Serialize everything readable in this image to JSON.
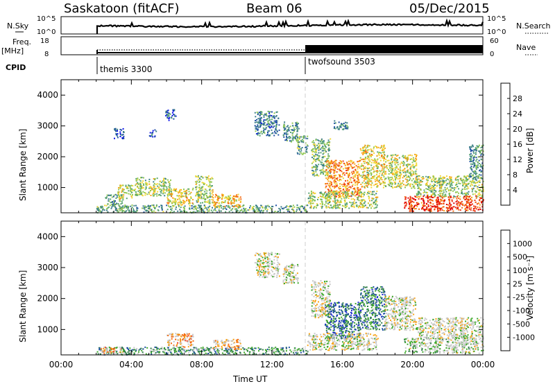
{
  "header": {
    "station": "Saskatoon (fitACF)",
    "beam": "Beam 06",
    "date": "05/Dec/2015"
  },
  "top_panels": {
    "nsky_label": "N.Sky",
    "nsky_ticks": [
      "10^5",
      "10^0"
    ],
    "nsearch_label": "N.Search",
    "nsearch_ticks": [
      "10^5",
      "10^0"
    ],
    "freq_label_1": "Freq.",
    "freq_label_2": "[MHz]",
    "freq_ticks": [
      "18",
      "8"
    ],
    "nave_label": "Nave",
    "nave_ticks": [
      "60",
      "0"
    ],
    "cpid_label": "CPID",
    "cpid_entries": [
      {
        "name": "themis 3300",
        "start_hour": 2.0
      },
      {
        "name": "twofsound 3503",
        "start_hour": 14.0
      }
    ]
  },
  "chart_data": [
    {
      "type": "heatmap",
      "panel": "power",
      "ylabel": "Slant Range [km]",
      "xlim": [
        0,
        24
      ],
      "ylim": [
        180,
        4500
      ],
      "y_ticks": [
        "1000",
        "2000",
        "3000",
        "4000"
      ],
      "colorbar_label": "Power [dB]",
      "colorbar_ticks": [
        "28",
        "24",
        "20",
        "16",
        "12",
        "8",
        "4"
      ],
      "colorbar_colors": [
        "#e00000",
        "#ee3a18",
        "#f46a10",
        "#f8a418",
        "#f0d838",
        "#90c850",
        "#58a470",
        "#3a7c88",
        "#1f4fa4",
        "#0810e8"
      ],
      "regions": [
        {
          "t0": 2.0,
          "t1": 14.0,
          "r0": 200,
          "r1": 450,
          "level": 0.35
        },
        {
          "t0": 2.5,
          "t1": 3.5,
          "r0": 450,
          "r1": 800,
          "level": 0.3
        },
        {
          "t0": 3.2,
          "t1": 4.2,
          "r0": 650,
          "r1": 1100,
          "level": 0.5
        },
        {
          "t0": 4.2,
          "t1": 6.2,
          "r0": 750,
          "r1": 1350,
          "level": 0.45
        },
        {
          "t0": 6.0,
          "t1": 7.5,
          "r0": 450,
          "r1": 1000,
          "level": 0.55
        },
        {
          "t0": 7.6,
          "t1": 8.6,
          "r0": 500,
          "r1": 1400,
          "level": 0.45
        },
        {
          "t0": 8.6,
          "t1": 10.2,
          "r0": 380,
          "r1": 800,
          "level": 0.6
        },
        {
          "t0": 3.0,
          "t1": 3.6,
          "r0": 2600,
          "r1": 2950,
          "level": 0.15
        },
        {
          "t0": 5.9,
          "t1": 6.5,
          "r0": 3200,
          "r1": 3550,
          "level": 0.15
        },
        {
          "t0": 5.0,
          "t1": 5.4,
          "r0": 2650,
          "r1": 2900,
          "level": 0.15
        },
        {
          "t0": 11.0,
          "t1": 12.4,
          "r0": 2700,
          "r1": 3500,
          "level": 0.25
        },
        {
          "t0": 12.6,
          "t1": 13.5,
          "r0": 2500,
          "r1": 3150,
          "level": 0.3
        },
        {
          "t0": 13.4,
          "t1": 14.0,
          "r0": 2100,
          "r1": 2700,
          "level": 0.35
        },
        {
          "t0": 14.2,
          "t1": 15.3,
          "r0": 1400,
          "r1": 2600,
          "level": 0.4
        },
        {
          "t0": 15.0,
          "t1": 17.0,
          "r0": 700,
          "r1": 1900,
          "level": 0.7
        },
        {
          "t0": 17.0,
          "t1": 18.4,
          "r0": 1000,
          "r1": 2400,
          "level": 0.55
        },
        {
          "t0": 18.4,
          "t1": 20.2,
          "r0": 1000,
          "r1": 2100,
          "level": 0.5
        },
        {
          "t0": 20.2,
          "t1": 24.0,
          "r0": 700,
          "r1": 1400,
          "level": 0.45
        },
        {
          "t0": 14.0,
          "t1": 18.0,
          "r0": 350,
          "r1": 900,
          "level": 0.45
        },
        {
          "t0": 19.5,
          "t1": 24.0,
          "r0": 250,
          "r1": 750,
          "level": 0.85
        },
        {
          "t0": 15.5,
          "t1": 16.3,
          "r0": 2900,
          "r1": 3200,
          "level": 0.25
        },
        {
          "t0": 23.2,
          "t1": 24.0,
          "r0": 1300,
          "r1": 2400,
          "level": 0.3
        }
      ]
    },
    {
      "type": "heatmap",
      "panel": "velocity",
      "xlabel": "Time UT",
      "ylabel": "Slant Range [km]",
      "xlim": [
        0,
        24
      ],
      "ylim": [
        180,
        4500
      ],
      "x_ticks": [
        "00:00",
        "04:00",
        "08:00",
        "12:00",
        "16:00",
        "20:00",
        "00:00"
      ],
      "y_ticks": [
        "1000",
        "2000",
        "3000",
        "4000"
      ],
      "colorbar_label": "Velocity [m s⁻¹]",
      "colorbar_ticks": [
        "1000",
        "500",
        "100",
        "25",
        "-25",
        "-100",
        "-500",
        "-1000"
      ],
      "colorbar_colors": [
        "#e00000",
        "#ee3a18",
        "#f46a10",
        "#f8a418",
        "#c8c8c8",
        "#c8c8c8",
        "#3ca828",
        "#2d7c48",
        "#1f4fa4",
        "#1a2ad0"
      ],
      "regions": [
        {
          "t0": 2.0,
          "t1": 14.0,
          "r0": 200,
          "r1": 450,
          "level": 0.3
        },
        {
          "t0": 2.2,
          "t1": 3.5,
          "r0": 250,
          "r1": 450,
          "level": 0.65
        },
        {
          "t0": 6.0,
          "t1": 7.5,
          "r0": 450,
          "r1": 900,
          "level": 0.65
        },
        {
          "t0": 8.6,
          "t1": 10.2,
          "r0": 380,
          "r1": 700,
          "level": 0.62
        },
        {
          "t0": 11.0,
          "t1": 12.4,
          "r0": 2700,
          "r1": 3500,
          "level": 0.5
        },
        {
          "t0": 12.6,
          "t1": 13.5,
          "r0": 2500,
          "r1": 3150,
          "level": 0.5
        },
        {
          "t0": 14.2,
          "t1": 15.3,
          "r0": 1400,
          "r1": 2600,
          "level": 0.5
        },
        {
          "t0": 15.0,
          "t1": 17.0,
          "r0": 700,
          "r1": 1900,
          "level": 0.2
        },
        {
          "t0": 17.0,
          "t1": 18.4,
          "r0": 1000,
          "r1": 2400,
          "level": 0.25
        },
        {
          "t0": 18.4,
          "t1": 20.2,
          "r0": 1000,
          "r1": 2100,
          "level": 0.5
        },
        {
          "t0": 20.2,
          "t1": 24.0,
          "r0": 700,
          "r1": 1400,
          "level": 0.5
        },
        {
          "t0": 14.0,
          "t1": 18.0,
          "r0": 350,
          "r1": 900,
          "level": 0.5
        },
        {
          "t0": 19.5,
          "t1": 24.0,
          "r0": 250,
          "r1": 750,
          "level": 0.45
        }
      ]
    }
  ]
}
